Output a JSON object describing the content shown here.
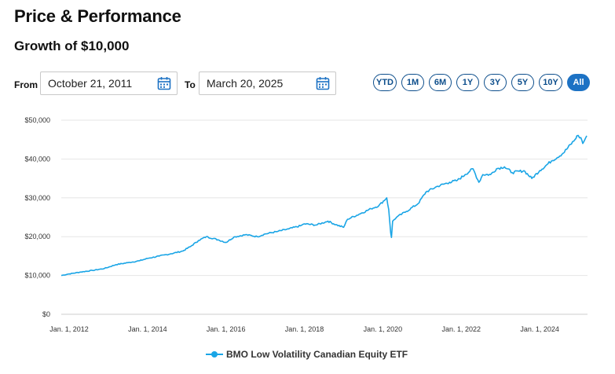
{
  "header": {
    "title": "Price & Performance",
    "subtitle": "Growth of $10,000"
  },
  "date_range": {
    "from_label": "From",
    "from_value": "October 21, 2011",
    "to_label": "To",
    "to_value": "March 20, 2025"
  },
  "range_buttons": [
    {
      "label": "YTD",
      "active": false
    },
    {
      "label": "1M",
      "active": false
    },
    {
      "label": "6M",
      "active": false
    },
    {
      "label": "1Y",
      "active": false
    },
    {
      "label": "3Y",
      "active": false
    },
    {
      "label": "5Y",
      "active": false
    },
    {
      "label": "10Y",
      "active": false
    },
    {
      "label": "All",
      "active": true
    }
  ],
  "colors": {
    "series": "#1aa5e6",
    "button": "#0d4e8c",
    "button_active": "#1d72c4"
  },
  "chart_data": {
    "type": "line",
    "title": "Growth of $10,000",
    "xlabel": "",
    "ylabel": "",
    "x_range": [
      2011.8,
      2025.22
    ],
    "ylim": [
      0,
      50000
    ],
    "y_ticks": [
      0,
      10000,
      20000,
      30000,
      40000,
      50000
    ],
    "y_tick_labels": [
      "$0",
      "$10,000",
      "$20,000",
      "$30,000",
      "$40,000",
      "$50,000"
    ],
    "x_ticks": [
      2012,
      2014,
      2016,
      2018,
      2020,
      2022,
      2024
    ],
    "x_tick_labels": [
      "Jan. 1, 2012",
      "Jan. 1, 2014",
      "Jan. 1, 2016",
      "Jan. 1, 2018",
      "Jan. 1, 2020",
      "Jan. 1, 2022",
      "Jan. 1, 2024"
    ],
    "legend_position": "bottom-center",
    "series": [
      {
        "name": "BMO Low Volatility Canadian Equity ETF",
        "x": [
          2011.8,
          2012.0,
          2012.3,
          2012.6,
          2012.9,
          2013.2,
          2013.5,
          2013.8,
          2014.0,
          2014.3,
          2014.6,
          2014.9,
          2015.1,
          2015.3,
          2015.5,
          2015.8,
          2016.0,
          2016.2,
          2016.5,
          2016.8,
          2017.0,
          2017.3,
          2017.6,
          2017.9,
          2018.0,
          2018.3,
          2018.6,
          2018.8,
          2019.0,
          2019.1,
          2019.4,
          2019.7,
          2019.9,
          2020.1,
          2020.15,
          2020.2,
          2020.22,
          2020.25,
          2020.35,
          2020.6,
          2020.9,
          2021.1,
          2021.4,
          2021.7,
          2021.9,
          2022.1,
          2022.3,
          2022.45,
          2022.55,
          2022.75,
          2022.9,
          2023.1,
          2023.3,
          2023.6,
          2023.8,
          2024.0,
          2024.3,
          2024.6,
          2024.9,
          2024.95,
          2025.05,
          2025.1,
          2025.2
        ],
        "values": [
          10000,
          10400,
          10900,
          11300,
          11800,
          12800,
          13300,
          13800,
          14400,
          15000,
          15600,
          16300,
          17500,
          19000,
          20000,
          19200,
          18500,
          19900,
          20500,
          20000,
          20700,
          21300,
          22000,
          22800,
          23300,
          23000,
          24000,
          23100,
          22400,
          24500,
          25800,
          27200,
          28000,
          30000,
          27000,
          21000,
          19800,
          24000,
          25000,
          26500,
          28500,
          31500,
          33000,
          34000,
          34500,
          36000,
          37500,
          34000,
          36000,
          36000,
          37500,
          38000,
          36500,
          37000,
          35000,
          37000,
          39500,
          41500,
          45000,
          46000,
          45500,
          44000,
          46000
        ]
      }
    ]
  }
}
